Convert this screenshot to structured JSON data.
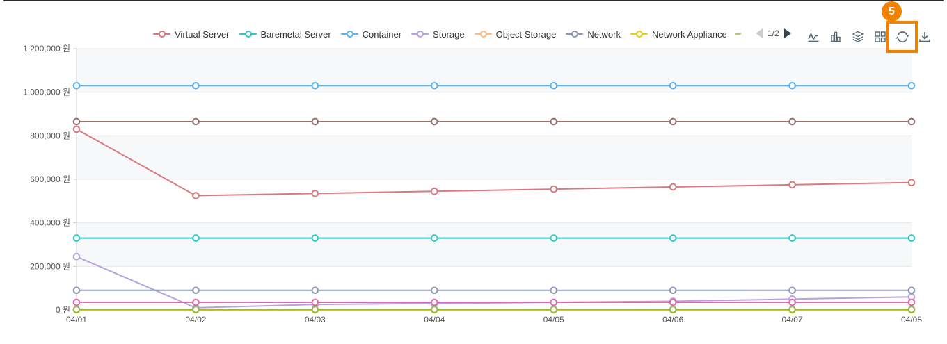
{
  "legend": {
    "page_label": "1/2",
    "prev_enabled": false,
    "next_enabled": true,
    "overflow_dash_color": "#aec878"
  },
  "toolbar": {
    "icons": [
      "line-chart-icon",
      "bar-chart-icon",
      "stack-icon",
      "tiled-icon",
      "restore-icon",
      "save-image-icon"
    ],
    "highlighted_icon": "restore-icon"
  },
  "annotation": {
    "badge_label": "5",
    "color": "#f08200"
  },
  "chart_data": {
    "type": "line",
    "x": [
      "04/01",
      "04/02",
      "04/03",
      "04/04",
      "04/05",
      "04/06",
      "04/07",
      "04/08"
    ],
    "y_axis": {
      "min": 0,
      "max": 1200000,
      "step": 200000,
      "unit": "원",
      "tick_labels": [
        "0 원",
        "200,000 원",
        "400,000 원",
        "600,000 원",
        "800,000 원",
        "1,000,000 원",
        "1,200,000 원"
      ]
    },
    "grid": true,
    "legend_position": "top",
    "series": [
      {
        "name": "Virtual Server",
        "color": "#d87a80",
        "legend_page": 1,
        "values": [
          830000,
          525000,
          535000,
          545000,
          555000,
          565000,
          575000,
          585000
        ]
      },
      {
        "name": "Baremetal Server",
        "color": "#2ec7c9",
        "legend_page": 1,
        "values": [
          330000,
          330000,
          330000,
          330000,
          330000,
          330000,
          330000,
          330000
        ]
      },
      {
        "name": "Container",
        "color": "#5ab1ef",
        "legend_page": 1,
        "values": [
          1030000,
          1030000,
          1030000,
          1030000,
          1030000,
          1030000,
          1030000,
          1030000
        ]
      },
      {
        "name": "Storage",
        "color": "#b6a2de",
        "legend_page": 1,
        "values": [
          245000,
          10000,
          25000,
          30000,
          35000,
          40000,
          50000,
          60000
        ]
      },
      {
        "name": "Object Storage",
        "color": "#ffb980",
        "legend_page": 1,
        "values": [
          0,
          0,
          0,
          0,
          0,
          0,
          0,
          0
        ]
      },
      {
        "name": "Network",
        "color": "#8d98b3",
        "legend_page": 1,
        "values": [
          90000,
          90000,
          90000,
          90000,
          90000,
          90000,
          90000,
          90000
        ]
      },
      {
        "name": "Network Appliance",
        "color": "#e5cf0d",
        "legend_page": 1,
        "values": [
          0,
          0,
          0,
          0,
          0,
          0,
          0,
          0
        ]
      },
      {
        "name": "",
        "note": "label on legend page 2 (not visible)",
        "color": "#97b552",
        "legend_page": 2,
        "values": [
          2000,
          2000,
          2000,
          2000,
          2000,
          2000,
          2000,
          2000
        ]
      },
      {
        "name": "",
        "note": "label on legend page 2 (not visible)",
        "color": "#95706d",
        "legend_page": 2,
        "values": [
          865000,
          865000,
          865000,
          865000,
          865000,
          865000,
          865000,
          865000
        ]
      },
      {
        "name": "",
        "note": "label on legend page 2 (not visible)",
        "color": "#dc69aa",
        "legend_page": 2,
        "values": [
          35000,
          35000,
          35000,
          35000,
          35000,
          35000,
          35000,
          35000
        ]
      }
    ]
  }
}
